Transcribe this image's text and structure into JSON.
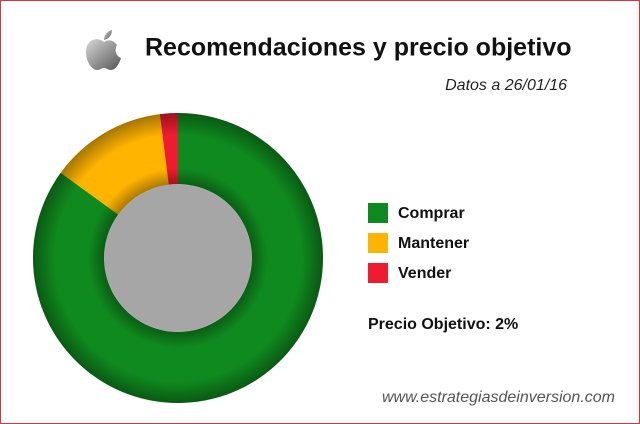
{
  "chart_data": {
    "type": "pie",
    "title": "Recomendaciones y precio objetivo",
    "subtitle": "Datos a 26/01/16",
    "categories": [
      "Comprar",
      "Mantener",
      "Vender"
    ],
    "values": [
      85,
      13,
      2
    ],
    "colors": [
      "#0f8a1e",
      "#ffb400",
      "#ee1c2e"
    ],
    "annotation": "Precio Objetivo: 2%",
    "source": "www.estrategiasdeinversion.com"
  }
}
